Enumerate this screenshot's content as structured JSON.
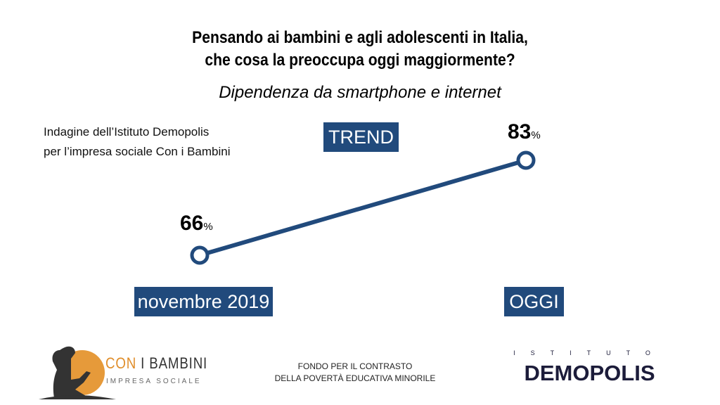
{
  "chart_data": {
    "type": "line",
    "title": "Pensando ai bambini e agli adolescenti in Italia,\nche cosa la preoccupa oggi maggiormente?",
    "subtitle": "Dipendenza da smartphone e internet",
    "categories": [
      "novembre 2019",
      "OGGI"
    ],
    "values": [
      66,
      83
    ],
    "value_labels": [
      "66",
      "83"
    ],
    "unit": "%",
    "badge": "TREND",
    "color": "#214a7c"
  },
  "source": {
    "line1": "Indagine dell’Istituto Demopolis",
    "line2": "per l’impresa sociale Con i Bambini"
  },
  "footer": {
    "logo_left": {
      "line1a": "CON",
      "line1b": "I BAMBINI",
      "line2": "IMPRESA SOCIALE"
    },
    "center": {
      "line1": "FONDO PER IL CONTRASTO",
      "line2": "DELLA POVERTÀ EDUCATIVA MINORILE"
    },
    "logo_right": {
      "top": "ISTITUTO",
      "main": "DEMOPOLIS"
    }
  }
}
